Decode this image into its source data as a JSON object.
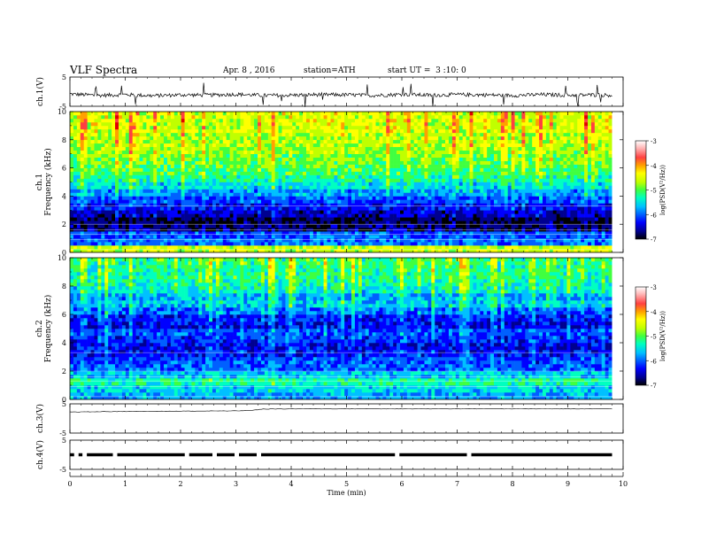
{
  "header": {
    "title": "VLF Spectra",
    "date": "Apr. 8 , 2016",
    "station": "station=ATH",
    "start": "start UT =  3 :10: 0"
  },
  "colors": {
    "background": "#ffffff",
    "axes": "#000000",
    "colormap": [
      "#000000",
      "#000090",
      "#0000ff",
      "#0060ff",
      "#00c0ff",
      "#00ffc0",
      "#40ff40",
      "#c0ff00",
      "#ffff00",
      "#ffa000",
      "#ff4040",
      "#e00000",
      "#ffffff"
    ]
  },
  "chart_data": [
    {
      "type": "line",
      "panel": "ch1-waveform",
      "ylabel": "ch.1(V)",
      "ylim": [
        -5,
        5
      ],
      "yticks": [
        "5",
        "-5"
      ],
      "xlim": [
        0,
        10
      ],
      "x_minutes": [
        0,
        0.5,
        1,
        1.5,
        2,
        2.5,
        3,
        3.5,
        4,
        4.5,
        5,
        5.5,
        6,
        6.5,
        7,
        7.5,
        8,
        8.5,
        9,
        9.5,
        9.8
      ],
      "values": [
        -0.8,
        -1.3,
        -1.0,
        -1.4,
        -1.1,
        -1.2,
        -0.9,
        -1.3,
        -1.2,
        -1.0,
        -1.1,
        -1.3,
        -0.9,
        -1.2,
        -1.0,
        -1.1,
        -1.3,
        -1.0,
        -1.2,
        -1.1,
        -1.2
      ]
    },
    {
      "type": "heatmap",
      "panel": "ch1-spectrogram",
      "ylabel": "ch.1\nFrequency (kHz)",
      "ylim": [
        0,
        10
      ],
      "yticks": [
        "0",
        "2",
        "4",
        "6",
        "8",
        "10"
      ],
      "xlim": [
        0,
        9.8
      ],
      "freq_kHz": [
        0.25,
        0.75,
        1.25,
        1.75,
        2.25,
        2.75,
        3.25,
        3.75,
        4.25,
        4.75,
        5.25,
        5.75,
        6.25,
        6.75,
        7.25,
        7.75,
        8.25,
        8.75,
        9.25,
        9.75
      ],
      "typical_log_psd": [
        -4.4,
        -5.8,
        -5.9,
        -6.6,
        -6.7,
        -6.4,
        -6.2,
        -6.0,
        -5.7,
        -5.4,
        -5.2,
        -5.0,
        -4.9,
        -4.8,
        -4.7,
        -4.6,
        -4.6,
        -4.5,
        -4.5,
        -4.5
      ],
      "colorbar": {
        "label": "log(PSD(V²/Hz))",
        "range": [
          -7,
          -3
        ],
        "ticks": [
          "-3",
          "-4",
          "-5",
          "-6",
          "-7"
        ]
      }
    },
    {
      "type": "heatmap",
      "panel": "ch2-spectrogram",
      "ylabel": "ch.2\nFrequency (kHz)",
      "ylim": [
        0,
        10
      ],
      "yticks": [
        "0",
        "2",
        "4",
        "6",
        "8",
        "10"
      ],
      "xlim": [
        0,
        9.8
      ],
      "freq_kHz": [
        0.25,
        0.75,
        1.25,
        1.75,
        2.25,
        2.75,
        3.25,
        3.75,
        4.25,
        4.75,
        5.25,
        5.75,
        6.25,
        6.75,
        7.25,
        7.75,
        8.25,
        8.75,
        9.25,
        9.75
      ],
      "typical_log_psd": [
        -5.6,
        -5.4,
        -5.1,
        -5.5,
        -5.9,
        -6.0,
        -6.2,
        -6.3,
        -6.1,
        -6.0,
        -6.3,
        -6.2,
        -5.9,
        -5.6,
        -5.7,
        -5.4,
        -5.3,
        -5.2,
        -5.2,
        -5.1
      ],
      "colorbar": {
        "label": "log(PSD(V²/Hz))",
        "range": [
          -7,
          -3
        ],
        "ticks": [
          "-3",
          "-4",
          "-5",
          "-6",
          "-7"
        ]
      }
    },
    {
      "type": "line",
      "panel": "ch3-waveform",
      "ylabel": "ch.3(V)",
      "ylim": [
        -5,
        5
      ],
      "yticks": [
        "5",
        "-5"
      ],
      "xlim": [
        0,
        10
      ],
      "x_minutes": [
        0,
        1,
        2,
        3,
        3.3,
        3.5,
        4,
        5,
        6,
        7,
        8,
        9,
        9.8
      ],
      "values": [
        2.2,
        2.4,
        2.5,
        2.6,
        2.8,
        3.2,
        3.3,
        3.3,
        3.3,
        3.3,
        3.3,
        3.3,
        3.3
      ]
    },
    {
      "type": "line",
      "panel": "ch4-waveform",
      "ylabel": "ch.4(V)",
      "ylim": [
        -5,
        5
      ],
      "yticks": [
        "5",
        "-5"
      ],
      "xlim": [
        0,
        10
      ],
      "x_minutes": [
        0,
        9.8
      ],
      "values": [
        0,
        0
      ],
      "gaps_minutes": [
        0.1,
        0.25,
        0.8,
        2.1,
        2.6,
        3.0,
        3.4,
        5.9,
        7.2
      ]
    }
  ],
  "xaxis": {
    "label": "Time (min)",
    "ticks": [
      "0",
      "1",
      "2",
      "3",
      "4",
      "5",
      "6",
      "7",
      "8",
      "9",
      "10"
    ]
  }
}
